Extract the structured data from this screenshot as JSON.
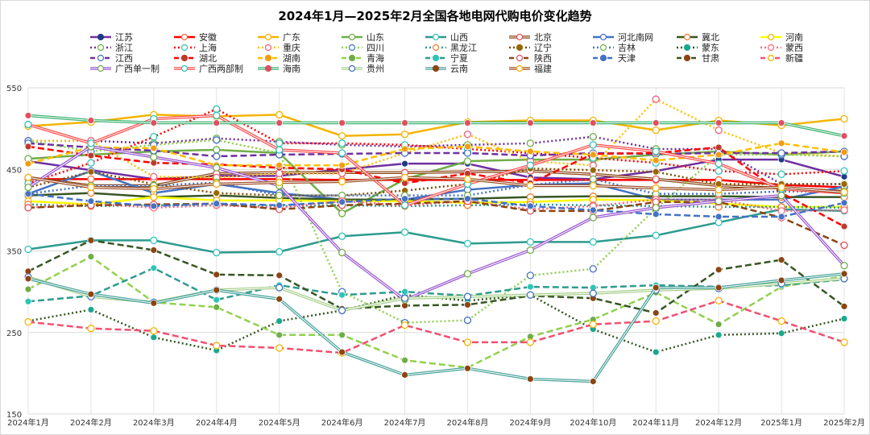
{
  "chart_data": {
    "type": "line",
    "title": "2024年1月—2025年2月全国各地电网代购电价变化趋势",
    "xlabel": "",
    "ylabel": "",
    "ylim": [
      150,
      550
    ],
    "yticks": [
      150,
      250,
      350,
      450,
      550
    ],
    "grid": true,
    "legend_position": "top",
    "x": [
      "2024年1月",
      "2024年2月",
      "2024年3月",
      "2024年4月",
      "2024年5月",
      "2024年6月",
      "2024年7月",
      "2024年8月",
      "2024年9月",
      "2024年10月",
      "2024年11月",
      "2024年12月",
      "2025年1月",
      "2025年2月"
    ],
    "series": [
      {
        "name": "江苏",
        "color": "#7030a0",
        "style": "solid",
        "marker": "filled",
        "marker_color": "#1f3c88",
        "values": [
          460,
          449,
          438,
          442,
          442,
          450,
          457,
          457,
          440,
          438,
          448,
          462,
          462,
          441
        ]
      },
      {
        "name": "安徽",
        "color": "#ff0000",
        "style": "solid",
        "marker": "hollow",
        "marker_color": "#ff6a3d",
        "values": [
          438,
          438,
          438,
          438,
          438,
          437,
          437,
          437,
          437,
          437,
          437,
          437,
          431,
          428
        ]
      },
      {
        "name": "广东",
        "color": "#f4b400",
        "style": "solid",
        "marker": "hollow",
        "marker_color": "#f4b400",
        "values": [
          503,
          508,
          517,
          515,
          517,
          491,
          493,
          508,
          510,
          510,
          498,
          510,
          504,
          512
        ]
      },
      {
        "name": "山东",
        "color": "#70ad47",
        "style": "solid",
        "marker": "hollow",
        "marker_color": "#70ad47",
        "values": [
          463,
          468,
          472,
          474,
          470,
          396,
          438,
          460,
          462,
          462,
          468,
          472,
          468,
          472
        ]
      },
      {
        "name": "山西",
        "color": "#2e9b8f",
        "style": "solid",
        "marker": "hollow",
        "marker_color": "#2ec4b6",
        "values": [
          352,
          363,
          363,
          348,
          349,
          368,
          373,
          359,
          361,
          361,
          369,
          385,
          401,
          399
        ]
      },
      {
        "name": "北京",
        "color": "#8b4513",
        "style": "double",
        "marker": "hollow",
        "marker_color": "#e05060",
        "values": [
          440,
          430,
          430,
          445,
          446,
          446,
          446,
          447,
          448,
          444,
          438,
          430,
          427,
          423
        ]
      },
      {
        "name": "河北南网",
        "color": "#4472c4",
        "style": "solid",
        "marker": "hollow",
        "marker_color": "#4472c4",
        "values": [
          420,
          448,
          421,
          432,
          421,
          413,
          413,
          425,
          431,
          433,
          413,
          413,
          413,
          429
        ]
      },
      {
        "name": "冀北",
        "color": "#375623",
        "style": "solid",
        "marker": "hollow",
        "marker_color": "#ed7d31",
        "values": [
          418,
          421,
          416,
          418,
          415,
          413,
          413,
          414,
          416,
          417,
          417,
          417,
          416,
          416
        ]
      },
      {
        "name": "河南",
        "color": "#ffff00",
        "style": "solid",
        "marker": "hollow",
        "marker_color": "#f4b400",
        "values": [
          411,
          407,
          416,
          412,
          412,
          411,
          411,
          409,
          410,
          413,
          412,
          408,
          404,
          404
        ]
      },
      {
        "name": "浙江",
        "color": "#7030a0",
        "style": "dotted",
        "marker": "hollow",
        "marker_color": "#70ad47",
        "values": [
          485,
          485,
          482,
          488,
          484,
          480,
          478,
          480,
          482,
          490,
          475,
          475,
          432,
          432
        ]
      },
      {
        "name": "上海",
        "color": "#ff0000",
        "style": "dotted",
        "marker": "hollow",
        "marker_color": "#2ec4b6",
        "values": [
          433,
          458,
          490,
          524,
          482,
          482,
          480,
          475,
          470,
          464,
          458,
          448,
          444,
          448
        ]
      },
      {
        "name": "重庆",
        "color": "#ffc000",
        "style": "dotted",
        "marker": "hollow",
        "marker_color": "#f06080",
        "values": [
          485,
          485,
          441,
          440,
          445,
          445,
          470,
          493,
          460,
          455,
          536,
          498,
          470,
          466
        ]
      },
      {
        "name": "四川",
        "color": "#92d050",
        "style": "dotted",
        "marker": "hollow",
        "marker_color": "#4472c4",
        "values": [
          485,
          472,
          480,
          486,
          470,
          300,
          262,
          265,
          320,
          328,
          402,
          468,
          468,
          466
        ]
      },
      {
        "name": "黑龙江",
        "color": "#2e9b8f",
        "style": "dotted",
        "marker": "hollow",
        "marker_color": "#ed7d31",
        "values": [
          407,
          405,
          406,
          406,
          405,
          406,
          405,
          406,
          407,
          406,
          405,
          404,
          404,
          403
        ]
      },
      {
        "name": "辽宁",
        "color": "#7f4f00",
        "style": "dotted",
        "marker": "filled",
        "marker_color": "#996600",
        "values": [
          428,
          447,
          432,
          421,
          418,
          418,
          424,
          432,
          451,
          449,
          447,
          432,
          432,
          432
        ]
      },
      {
        "name": "吉林",
        "color": "#4472c4",
        "style": "dotted",
        "marker": "hollow",
        "marker_color": "#70ad47",
        "values": [
          420,
          430,
          430,
          434,
          418,
          418,
          418,
          418,
          431,
          438,
          420,
          420,
          423,
          423
        ]
      },
      {
        "name": "蒙东",
        "color": "#375623",
        "style": "dotted",
        "marker": "filled",
        "marker_color": "#1aa88f",
        "values": [
          264,
          278,
          244,
          228,
          264,
          277,
          296,
          289,
          296,
          254,
          226,
          247,
          249,
          267
        ]
      },
      {
        "name": "蒙西",
        "color": "#ff6680",
        "style": "dotted",
        "marker": "hollow",
        "marker_color": "#ff6680",
        "values": [
          403,
          408,
          403,
          406,
          403,
          411,
          406,
          411,
          401,
          405,
          413,
          413,
          399,
          400
        ]
      },
      {
        "name": "江西",
        "color": "#7030a0",
        "style": "dashed",
        "marker": "hollow",
        "marker_color": "#4472c4",
        "values": [
          482,
          477,
          473,
          466,
          468,
          469,
          470,
          470,
          467,
          470,
          469,
          470,
          470,
          472
        ]
      },
      {
        "name": "湖北",
        "color": "#ff0000",
        "style": "dashed",
        "marker": "filled",
        "marker_color": "#c0392b",
        "values": [
          478,
          467,
          458,
          456,
          452,
          450,
          433,
          445,
          433,
          469,
          470,
          477,
          421,
          380
        ]
      },
      {
        "name": "湖南",
        "color": "#ffc000",
        "style": "dashed",
        "marker": "filled",
        "marker_color": "#f39c12",
        "values": [
          457,
          477,
          476,
          455,
          455,
          455,
          475,
          478,
          472,
          468,
          461,
          468,
          482,
          471
        ]
      },
      {
        "name": "青海",
        "color": "#92d050",
        "style": "dashed",
        "marker": "filled",
        "marker_color": "#70ad47",
        "values": [
          303,
          343,
          287,
          281,
          247,
          247,
          216,
          207,
          245,
          266,
          299,
          260,
          306,
          319
        ]
      },
      {
        "name": "宁夏",
        "color": "#2e9b8f",
        "style": "dashed",
        "marker": "filled",
        "marker_color": "#2ec4b6",
        "values": [
          288,
          295,
          329,
          290,
          308,
          296,
          300,
          295,
          306,
          305,
          308,
          306,
          308,
          315
        ]
      },
      {
        "name": "陕西",
        "color": "#8b4513",
        "style": "dashed",
        "marker": "hollow",
        "marker_color": "#e05060",
        "values": [
          403,
          406,
          407,
          408,
          401,
          406,
          408,
          411,
          399,
          399,
          410,
          410,
          391,
          357
        ]
      },
      {
        "name": "天津",
        "color": "#4472c4",
        "style": "dashed",
        "marker": "filled",
        "marker_color": "#4472c4",
        "values": [
          420,
          411,
          405,
          408,
          406,
          410,
          414,
          414,
          405,
          400,
          395,
          392,
          392,
          409
        ]
      },
      {
        "name": "甘肃",
        "color": "#375623",
        "style": "dashed",
        "marker": "filled",
        "marker_color": "#8b4513",
        "values": [
          325,
          363,
          351,
          321,
          320,
          279,
          283,
          284,
          295,
          292,
          274,
          327,
          339,
          282
        ]
      },
      {
        "name": "新疆",
        "color": "#f05070",
        "style": "dashed",
        "marker": "hollow",
        "marker_color": "#f4b400",
        "values": [
          263,
          255,
          252,
          234,
          231,
          225,
          259,
          238,
          238,
          260,
          264,
          289,
          264,
          238
        ]
      },
      {
        "name": "广西单一制",
        "color": "#9b59d0",
        "style": "double",
        "marker": "hollow",
        "marker_color": "#70ad47",
        "values": [
          428,
          478,
          465,
          452,
          430,
          348,
          290,
          322,
          351,
          391,
          403,
          411,
          418,
          332
        ]
      },
      {
        "name": "广西两部制",
        "color": "#ff4d4d",
        "style": "double",
        "marker": "hollow",
        "marker_color": "#2ec4b6",
        "values": [
          505,
          482,
          512,
          516,
          474,
          470,
          406,
          432,
          455,
          480,
          472,
          457,
          426,
          421
        ]
      },
      {
        "name": "海南",
        "color": "#3cb371",
        "style": "double",
        "marker": "filled",
        "marker_color": "#e05060",
        "values": [
          516,
          510,
          507,
          507,
          507,
          507,
          507,
          507,
          507,
          507,
          507,
          507,
          507,
          491
        ]
      },
      {
        "name": "贵州",
        "color": "#a8d08d",
        "style": "double",
        "marker": "hollow",
        "marker_color": "#4472c4",
        "values": [
          318,
          294,
          287,
          302,
          305,
          277,
          292,
          294,
          296,
          298,
          302,
          304,
          310,
          316
        ]
      },
      {
        "name": "云南",
        "color": "#4aa39b",
        "style": "double",
        "marker": "filled",
        "marker_color": "#8b4513",
        "values": [
          316,
          297,
          286,
          302,
          291,
          226,
          198,
          206,
          193,
          190,
          305,
          305,
          314,
          322
        ]
      },
      {
        "name": "福建",
        "color": "#a0522d",
        "style": "double",
        "marker": "hollow",
        "marker_color": "#f4b400",
        "values": [
          440,
          428,
          426,
          432,
          434,
          435,
          440,
          438,
          430,
          430,
          427,
          425,
          428,
          422
        ]
      }
    ]
  }
}
